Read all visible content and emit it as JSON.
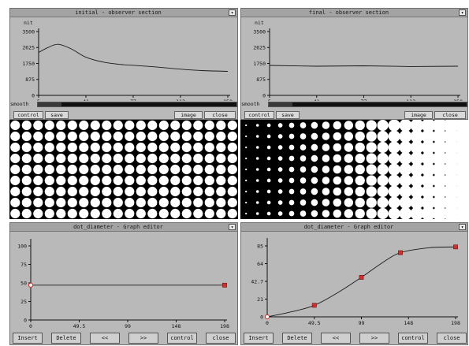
{
  "top_left": {
    "title": "initial - observer section",
    "ylabel": "nit",
    "y_ticks": [
      "3500",
      "2625",
      "1750",
      "875",
      "0"
    ],
    "x_ticks": [
      "5",
      "41",
      "77",
      "113",
      "150"
    ],
    "smooth_label": "smooth",
    "smooth_level": 0.12,
    "buttons": {
      "control": "control",
      "save": "save",
      "image": "image",
      "close": "close"
    },
    "chart_data": {
      "type": "line",
      "ylabel": "nit",
      "xlim": [
        5,
        150
      ],
      "ylim": [
        0,
        3500
      ],
      "x": [
        5,
        12,
        20,
        30,
        41,
        55,
        70,
        77,
        95,
        113,
        130,
        150
      ],
      "values": [
        2350,
        2620,
        2800,
        2550,
        2100,
        1820,
        1680,
        1650,
        1560,
        1440,
        1360,
        1320
      ]
    }
  },
  "top_right": {
    "title": "final - observer section",
    "ylabel": "nit",
    "y_ticks": [
      "3500",
      "2625",
      "1750",
      "875",
      "0"
    ],
    "x_ticks": [
      "5",
      "41",
      "77",
      "113",
      "150"
    ],
    "smooth_label": "smooth",
    "smooth_level": 0.12,
    "buttons": {
      "control": "control",
      "save": "save",
      "image": "image",
      "close": "close"
    },
    "chart_data": {
      "type": "line",
      "ylabel": "nit",
      "xlim": [
        5,
        150
      ],
      "ylim": [
        0,
        3500
      ],
      "x": [
        5,
        41,
        77,
        113,
        150
      ],
      "values": [
        1640,
        1600,
        1620,
        1580,
        1600
      ]
    }
  },
  "dots_left": {
    "pattern": "uniform"
  },
  "dots_right": {
    "pattern": "gradient"
  },
  "bottom_left": {
    "title": "dot_diameter - Graph editor",
    "y_ticks": [
      "100",
      "75",
      "50",
      "25",
      "0"
    ],
    "x_ticks": [
      "0",
      "49.5",
      "99",
      "148",
      "198"
    ],
    "buttons": [
      "Insert",
      "Delete",
      "<<",
      ">>",
      "control",
      "close"
    ],
    "chart_data": {
      "type": "line",
      "xlim": [
        0,
        198
      ],
      "ylim": [
        0,
        112
      ],
      "x": [
        0,
        198
      ],
      "values": [
        50,
        50
      ],
      "control_points": [
        [
          0,
          50
        ],
        [
          198,
          50
        ]
      ]
    }
  },
  "bottom_right": {
    "title": "dot_diameter - Graph editor",
    "y_ticks": [
      "85",
      "64",
      "42.7",
      "21",
      "0"
    ],
    "x_ticks": [
      "0",
      "49.5",
      "99",
      "148",
      "198"
    ],
    "buttons": [
      "Insert",
      "Delete",
      "<<",
      ">>",
      "control",
      "close"
    ],
    "chart_data": {
      "type": "line",
      "xlim": [
        0,
        198
      ],
      "ylim": [
        0,
        92
      ],
      "x": [
        0,
        25,
        49.5,
        75,
        99,
        120,
        140,
        170,
        198
      ],
      "values": [
        0,
        6,
        14,
        30,
        48,
        65,
        78,
        84,
        85
      ],
      "control_points": [
        [
          0,
          0
        ],
        [
          49.5,
          14
        ],
        [
          99,
          48
        ],
        [
          140,
          78
        ],
        [
          198,
          85
        ]
      ]
    }
  },
  "colors": {
    "panel": "#b9b9b9",
    "curve": "#1a1a1a",
    "control_point": "#c83232",
    "dot": "#ffffff"
  }
}
